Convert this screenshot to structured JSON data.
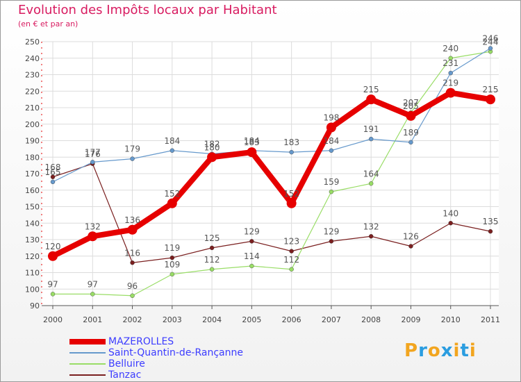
{
  "title": "Evolution des Impôts locaux par Habitant",
  "subtitle": "(en € et par an)",
  "brand": {
    "letters": [
      "P",
      "r",
      "o",
      "x",
      "i",
      "t",
      "i"
    ],
    "colors": [
      "#f2a51f",
      "#2b9de0",
      "#f2a51f",
      "#2b9de0",
      "#f2a51f",
      "#2b9de0",
      "#f2a51f"
    ]
  },
  "chart_data": {
    "type": "line",
    "title": "Evolution des Impôts locaux par Habitant",
    "subtitle": "(en € et par an)",
    "x": [
      "2000",
      "2001",
      "2002",
      "2003",
      "2004",
      "2005",
      "2006",
      "2007",
      "2008",
      "2009",
      "2010",
      "2011"
    ],
    "ylim": [
      90,
      250
    ],
    "yticks": [
      "90",
      "100",
      "110",
      "120",
      "130",
      "140",
      "150",
      "160",
      "170",
      "180",
      "190",
      "200",
      "210",
      "220",
      "230",
      "240",
      "250"
    ],
    "grid": true,
    "legend_position": "bottom",
    "series": [
      {
        "name": "MAZEROLLES",
        "color": "#e60000",
        "values": [
          120,
          132,
          136,
          152,
          180,
          183,
          152,
          198,
          215,
          205,
          219,
          215
        ],
        "labels": [
          "120",
          "132",
          "136",
          "152",
          "180",
          "183",
          "152",
          "198",
          "215",
          "205",
          "219",
          "215"
        ]
      },
      {
        "name": "Saint-Quantin-de-Rançanne",
        "color": "#6699cc",
        "values": [
          165,
          177,
          179,
          184,
          182,
          184,
          183,
          184,
          191,
          189,
          231,
          246
        ],
        "labels": [
          "165",
          "177",
          "179",
          "184",
          "182",
          "184",
          "183",
          "184",
          "191",
          "189",
          "231",
          "246"
        ]
      },
      {
        "name": "Belluire",
        "color": "#99dd66",
        "values": [
          97,
          97,
          96,
          109,
          112,
          114,
          112,
          159,
          164,
          207,
          240,
          244
        ],
        "labels": [
          "97",
          "97",
          "96",
          "109",
          "112",
          "114",
          "112",
          "159",
          "164",
          "207",
          "240",
          "244"
        ]
      },
      {
        "name": "Tanzac",
        "color": "#7a1f1f",
        "values": [
          168,
          176,
          116,
          119,
          125,
          129,
          123,
          129,
          132,
          126,
          140,
          135
        ],
        "labels": [
          "168",
          "176",
          "116",
          "119",
          "125",
          "129",
          "123",
          "129",
          "132",
          "126",
          "140",
          "135"
        ]
      }
    ]
  }
}
